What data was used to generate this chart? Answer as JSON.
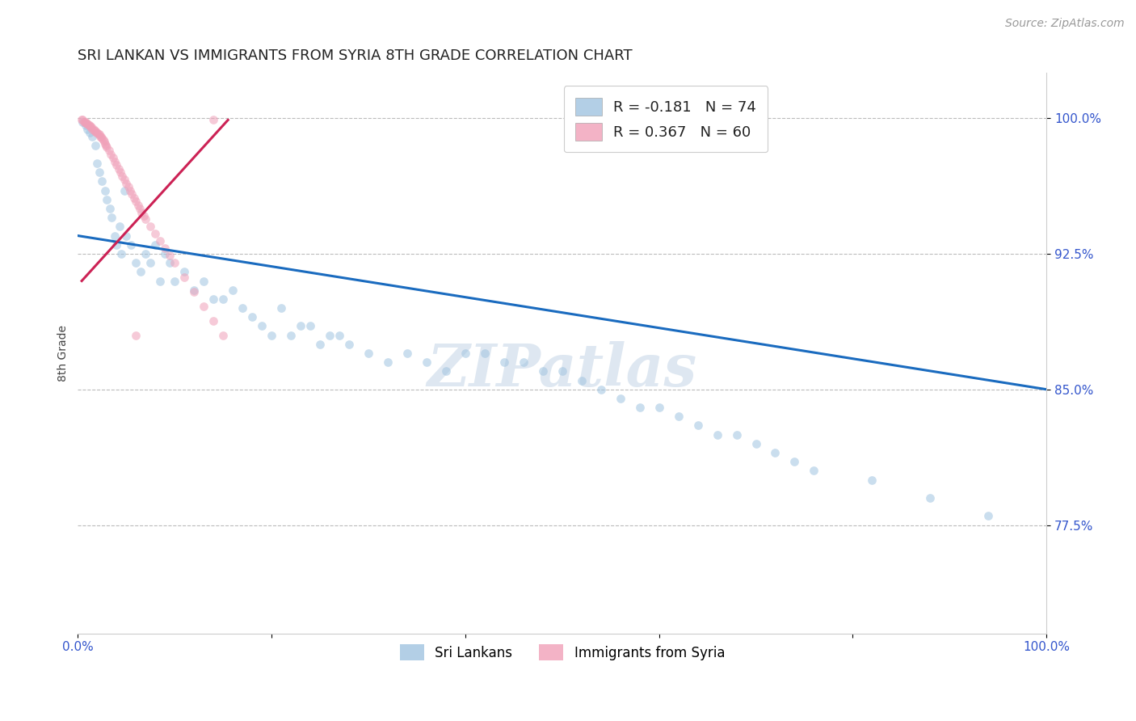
{
  "title": "SRI LANKAN VS IMMIGRANTS FROM SYRIA 8TH GRADE CORRELATION CHART",
  "source": "Source: ZipAtlas.com",
  "ylabel": "8th Grade",
  "ytick_labels": [
    "100.0%",
    "92.5%",
    "85.0%",
    "77.5%"
  ],
  "ytick_values": [
    1.0,
    0.925,
    0.85,
    0.775
  ],
  "xlim": [
    0.0,
    1.0
  ],
  "ylim": [
    0.715,
    1.025
  ],
  "legend_entries": [
    {
      "label": "R = -0.181   N = 74",
      "color": "#a8c8e8"
    },
    {
      "label": "R = 0.367   N = 60",
      "color": "#f0a0b8"
    }
  ],
  "blue_scatter_x": [
    0.005,
    0.008,
    0.01,
    0.012,
    0.015,
    0.018,
    0.02,
    0.022,
    0.025,
    0.028,
    0.03,
    0.033,
    0.035,
    0.038,
    0.04,
    0.043,
    0.045,
    0.048,
    0.05,
    0.055,
    0.06,
    0.065,
    0.07,
    0.075,
    0.08,
    0.085,
    0.09,
    0.095,
    0.1,
    0.11,
    0.12,
    0.13,
    0.14,
    0.15,
    0.16,
    0.17,
    0.18,
    0.19,
    0.2,
    0.21,
    0.22,
    0.23,
    0.24,
    0.25,
    0.26,
    0.27,
    0.28,
    0.3,
    0.32,
    0.34,
    0.36,
    0.38,
    0.4,
    0.42,
    0.44,
    0.46,
    0.48,
    0.5,
    0.52,
    0.54,
    0.56,
    0.58,
    0.6,
    0.62,
    0.64,
    0.66,
    0.68,
    0.7,
    0.72,
    0.74,
    0.76,
    0.82,
    0.88,
    0.94
  ],
  "blue_scatter_y": [
    0.998,
    0.996,
    0.994,
    0.992,
    0.99,
    0.985,
    0.975,
    0.97,
    0.965,
    0.96,
    0.955,
    0.95,
    0.945,
    0.935,
    0.93,
    0.94,
    0.925,
    0.96,
    0.935,
    0.93,
    0.92,
    0.915,
    0.925,
    0.92,
    0.93,
    0.91,
    0.925,
    0.92,
    0.91,
    0.915,
    0.905,
    0.91,
    0.9,
    0.9,
    0.905,
    0.895,
    0.89,
    0.885,
    0.88,
    0.895,
    0.88,
    0.885,
    0.885,
    0.875,
    0.88,
    0.88,
    0.875,
    0.87,
    0.865,
    0.87,
    0.865,
    0.86,
    0.87,
    0.87,
    0.865,
    0.865,
    0.86,
    0.86,
    0.855,
    0.85,
    0.845,
    0.84,
    0.84,
    0.835,
    0.83,
    0.825,
    0.825,
    0.82,
    0.815,
    0.81,
    0.805,
    0.8,
    0.79,
    0.78
  ],
  "pink_scatter_x": [
    0.004,
    0.005,
    0.006,
    0.007,
    0.008,
    0.009,
    0.01,
    0.011,
    0.012,
    0.013,
    0.014,
    0.015,
    0.016,
    0.017,
    0.018,
    0.019,
    0.02,
    0.021,
    0.022,
    0.023,
    0.024,
    0.025,
    0.026,
    0.027,
    0.028,
    0.029,
    0.03,
    0.032,
    0.034,
    0.036,
    0.038,
    0.04,
    0.042,
    0.044,
    0.046,
    0.048,
    0.05,
    0.052,
    0.054,
    0.056,
    0.058,
    0.06,
    0.062,
    0.064,
    0.066,
    0.068,
    0.07,
    0.075,
    0.08,
    0.085,
    0.09,
    0.095,
    0.1,
    0.11,
    0.12,
    0.13,
    0.14,
    0.15,
    0.06,
    0.14
  ],
  "pink_scatter_y": [
    0.999,
    0.999,
    0.998,
    0.998,
    0.998,
    0.997,
    0.997,
    0.996,
    0.996,
    0.995,
    0.995,
    0.994,
    0.994,
    0.993,
    0.993,
    0.992,
    0.992,
    0.991,
    0.991,
    0.99,
    0.99,
    0.989,
    0.988,
    0.987,
    0.986,
    0.985,
    0.984,
    0.982,
    0.98,
    0.978,
    0.976,
    0.974,
    0.972,
    0.97,
    0.968,
    0.966,
    0.964,
    0.962,
    0.96,
    0.958,
    0.956,
    0.954,
    0.952,
    0.95,
    0.948,
    0.946,
    0.944,
    0.94,
    0.936,
    0.932,
    0.928,
    0.924,
    0.92,
    0.912,
    0.904,
    0.896,
    0.888,
    0.88,
    0.88,
    0.999
  ],
  "blue_line_x": [
    0.0,
    1.0
  ],
  "blue_line_y": [
    0.935,
    0.85
  ],
  "pink_line_x": [
    0.004,
    0.155
  ],
  "pink_line_y": [
    0.91,
    0.999
  ],
  "watermark_text": "ZIPatlas",
  "scatter_size": 60,
  "scatter_alpha": 0.55,
  "blue_color": "#a0c4e0",
  "pink_color": "#f0a0b8",
  "blue_fill": "#a0c4e0",
  "pink_fill": "#f0a0b8",
  "blue_line_color": "#1a6bbf",
  "pink_line_color": "#cc2255",
  "grid_color": "#bbbbbb",
  "ytick_color": "#3355cc",
  "xtick_color": "#3355cc",
  "background_color": "#ffffff",
  "title_fontsize": 13,
  "source_fontsize": 10,
  "tick_fontsize": 11,
  "ylabel_fontsize": 10
}
